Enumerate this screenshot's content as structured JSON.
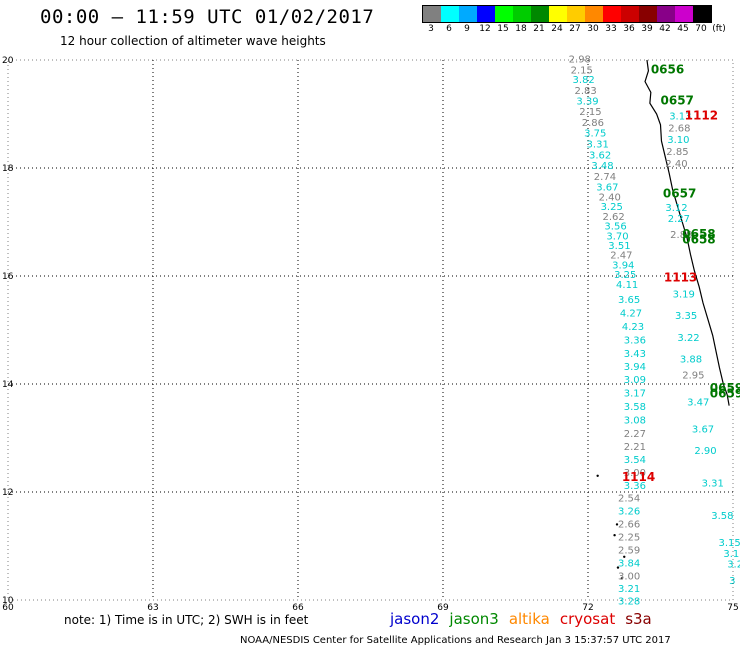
{
  "title": "00:00 – 11:59 UTC 01/02/2017",
  "subtitle": "12 hour collection of altimeter wave heights",
  "legend": {
    "labels": [
      "3",
      "6",
      "9",
      "12",
      "15",
      "18",
      "21",
      "24",
      "27",
      "30",
      "33",
      "36",
      "39",
      "42",
      "45",
      "70",
      "(ft)"
    ],
    "colors": [
      "#808080",
      "#00ffff",
      "#00aaff",
      "#0000ff",
      "#00ff00",
      "#00cc00",
      "#008800",
      "#ffff00",
      "#ffcc00",
      "#ff8800",
      "#ff0000",
      "#cc0000",
      "#880000",
      "#880088",
      "#cc00cc",
      "#000000"
    ]
  },
  "axes": {
    "x_ticks": [
      "60",
      "63",
      "66",
      "69",
      "72",
      "75"
    ],
    "y_ticks": [
      "20",
      "18",
      "16",
      "14",
      "12",
      "10"
    ]
  },
  "passes": [
    {
      "label": "0656",
      "color": "#007700",
      "lon": 73.3,
      "lat": 19.75
    },
    {
      "label": "0657",
      "color": "#007700",
      "lon": 73.5,
      "lat": 19.18
    },
    {
      "label": "0657",
      "color": "#007700",
      "lon": 73.55,
      "lat": 17.45
    },
    {
      "label": "0658",
      "color": "#007700",
      "lon": 73.95,
      "lat": 16.7
    },
    {
      "label": "0658",
      "color": "#007700",
      "lon": 73.95,
      "lat": 16.6
    },
    {
      "label": "0659",
      "color": "#007700",
      "lon": 74.52,
      "lat": 13.85
    },
    {
      "label": "0659",
      "color": "#007700",
      "lon": 74.52,
      "lat": 13.75
    },
    {
      "label": "1112",
      "color": "#dd0000",
      "lon": 74.0,
      "lat": 18.9
    },
    {
      "label": "1113",
      "color": "#dd0000",
      "lon": 73.57,
      "lat": 15.9
    },
    {
      "label": "1114",
      "color": "#dd0000",
      "lon": 72.7,
      "lat": 12.2
    }
  ],
  "track_a": [
    {
      "v": "2.98",
      "c": "#808080",
      "lon": 71.6,
      "lat": 19.95
    },
    {
      "v": "2.15",
      "c": "#808080",
      "lon": 71.64,
      "lat": 19.75
    },
    {
      "v": "3.82",
      "c": "#00cccc",
      "lon": 71.68,
      "lat": 19.57
    },
    {
      "v": "2.83",
      "c": "#808080",
      "lon": 71.72,
      "lat": 19.37
    },
    {
      "v": "3.39",
      "c": "#00cccc",
      "lon": 71.76,
      "lat": 19.18
    },
    {
      "v": "2.15",
      "c": "#808080",
      "lon": 71.82,
      "lat": 18.98
    },
    {
      "v": "2.86",
      "c": "#808080",
      "lon": 71.87,
      "lat": 18.78
    },
    {
      "v": "3.75",
      "c": "#00cccc",
      "lon": 71.92,
      "lat": 18.58
    },
    {
      "v": "3.31",
      "c": "#00cccc",
      "lon": 71.97,
      "lat": 18.38
    },
    {
      "v": "3.62",
      "c": "#00cccc",
      "lon": 72.02,
      "lat": 18.18
    },
    {
      "v": "3.48",
      "c": "#00cccc",
      "lon": 72.07,
      "lat": 17.98
    },
    {
      "v": "2.74",
      "c": "#808080",
      "lon": 72.12,
      "lat": 17.78
    },
    {
      "v": "3.67",
      "c": "#00cccc",
      "lon": 72.17,
      "lat": 17.58
    },
    {
      "v": "2.40",
      "c": "#808080",
      "lon": 72.22,
      "lat": 17.4
    },
    {
      "v": "3.25",
      "c": "#00cccc",
      "lon": 72.26,
      "lat": 17.22
    },
    {
      "v": "2.62",
      "c": "#808080",
      "lon": 72.3,
      "lat": 17.04
    },
    {
      "v": "3.56",
      "c": "#00cccc",
      "lon": 72.34,
      "lat": 16.86
    },
    {
      "v": "3.70",
      "c": "#00cccc",
      "lon": 72.38,
      "lat": 16.68
    },
    {
      "v": "3.51",
      "c": "#00cccc",
      "lon": 72.42,
      "lat": 16.5
    },
    {
      "v": "2.47",
      "c": "#808080",
      "lon": 72.46,
      "lat": 16.32
    },
    {
      "v": "3.94",
      "c": "#00cccc",
      "lon": 72.5,
      "lat": 16.14
    },
    {
      "v": "3.25",
      "c": "#00cccc",
      "lon": 72.54,
      "lat": 15.96
    },
    {
      "v": "4.11",
      "c": "#00cccc",
      "lon": 72.58,
      "lat": 15.78
    },
    {
      "v": "3.65",
      "c": "#00cccc",
      "lon": 72.62,
      "lat": 15.5
    },
    {
      "v": "4.27",
      "c": "#00cccc",
      "lon": 72.66,
      "lat": 15.25
    },
    {
      "v": "4.23",
      "c": "#00cccc",
      "lon": 72.7,
      "lat": 15.0
    },
    {
      "v": "3.36",
      "c": "#00cccc",
      "lon": 72.74,
      "lat": 14.75
    },
    {
      "v": "3.43",
      "c": "#00cccc",
      "lon": 72.74,
      "lat": 14.5
    },
    {
      "v": "3.94",
      "c": "#00cccc",
      "lon": 72.74,
      "lat": 14.26
    },
    {
      "v": "3.09",
      "c": "#00cccc",
      "lon": 72.74,
      "lat": 14.02
    },
    {
      "v": "3.17",
      "c": "#00cccc",
      "lon": 72.74,
      "lat": 13.77
    },
    {
      "v": "3.58",
      "c": "#00cccc",
      "lon": 72.74,
      "lat": 13.52
    },
    {
      "v": "3.08",
      "c": "#00cccc",
      "lon": 72.74,
      "lat": 13.27
    },
    {
      "v": "2.27",
      "c": "#808080",
      "lon": 72.74,
      "lat": 13.02
    },
    {
      "v": "2.21",
      "c": "#808080",
      "lon": 72.74,
      "lat": 12.78
    },
    {
      "v": "3.54",
      "c": "#00cccc",
      "lon": 72.74,
      "lat": 12.54
    },
    {
      "v": "3.00",
      "c": "#808080",
      "lon": 72.74,
      "lat": 12.3
    },
    {
      "v": "3.36",
      "c": "#00cccc",
      "lon": 72.74,
      "lat": 12.06
    },
    {
      "v": "2.54",
      "c": "#808080",
      "lon": 72.62,
      "lat": 11.82
    },
    {
      "v": "3.26",
      "c": "#00cccc",
      "lon": 72.62,
      "lat": 11.58
    },
    {
      "v": "2.66",
      "c": "#808080",
      "lon": 72.62,
      "lat": 11.34
    },
    {
      "v": "2.25",
      "c": "#808080",
      "lon": 72.62,
      "lat": 11.1
    },
    {
      "v": "2.59",
      "c": "#808080",
      "lon": 72.62,
      "lat": 10.86
    },
    {
      "v": "3.84",
      "c": "#00cccc",
      "lon": 72.62,
      "lat": 10.62
    },
    {
      "v": "3.00",
      "c": "#808080",
      "lon": 72.62,
      "lat": 10.38
    },
    {
      "v": "3.21",
      "c": "#00cccc",
      "lon": 72.62,
      "lat": 10.15
    },
    {
      "v": "3.28",
      "c": "#00cccc",
      "lon": 72.62,
      "lat": 9.92
    }
  ],
  "track_b": [
    {
      "v": "3.13",
      "c": "#00cccc",
      "lon": 73.68,
      "lat": 18.9
    },
    {
      "v": "2.68",
      "c": "#808080",
      "lon": 73.66,
      "lat": 18.68
    },
    {
      "v": "3.10",
      "c": "#00cccc",
      "lon": 73.64,
      "lat": 18.46
    },
    {
      "v": "2.85",
      "c": "#808080",
      "lon": 73.62,
      "lat": 18.24
    },
    {
      "v": "2.40",
      "c": "#808080",
      "lon": 73.6,
      "lat": 18.02
    },
    {
      "v": "3.12",
      "c": "#00cccc",
      "lon": 73.6,
      "lat": 17.2
    },
    {
      "v": "2.27",
      "c": "#00cccc",
      "lon": 73.65,
      "lat": 17.0
    },
    {
      "v": "2.88",
      "c": "#808080",
      "lon": 73.7,
      "lat": 16.7
    },
    {
      "v": "3.19",
      "c": "#00cccc",
      "lon": 73.75,
      "lat": 15.6
    },
    {
      "v": "3.35",
      "c": "#00cccc",
      "lon": 73.8,
      "lat": 15.2
    },
    {
      "v": "3.22",
      "c": "#00cccc",
      "lon": 73.85,
      "lat": 14.8
    },
    {
      "v": "3.88",
      "c": "#00cccc",
      "lon": 73.9,
      "lat": 14.4
    },
    {
      "v": "2.95",
      "c": "#808080",
      "lon": 73.95,
      "lat": 14.1
    },
    {
      "v": "3.47",
      "c": "#00cccc",
      "lon": 74.05,
      "lat": 13.6
    },
    {
      "v": "3.67",
      "c": "#00cccc",
      "lon": 74.15,
      "lat": 13.1
    },
    {
      "v": "2.90",
      "c": "#00cccc",
      "lon": 74.2,
      "lat": 12.7
    },
    {
      "v": "3.31",
      "c": "#00cccc",
      "lon": 74.35,
      "lat": 12.1
    },
    {
      "v": "3.58",
      "c": "#00cccc",
      "lon": 74.55,
      "lat": 11.5
    },
    {
      "v": "3.15",
      "c": "#00cccc",
      "lon": 74.7,
      "lat": 11.0
    },
    {
      "v": "3.1",
      "c": "#00cccc",
      "lon": 74.8,
      "lat": 10.8
    },
    {
      "v": "3.2",
      "c": "#00cccc",
      "lon": 74.88,
      "lat": 10.6
    },
    {
      "v": "3",
      "c": "#00cccc",
      "lon": 74.92,
      "lat": 10.3
    }
  ],
  "footer": {
    "note": "note:  1) Time is in UTC;  2) SWH is in feet",
    "satellites": [
      {
        "name": "jason2",
        "color": "#0000cc"
      },
      {
        "name": "jason3",
        "color": "#008800"
      },
      {
        "name": "altika",
        "color": "#ff8800"
      },
      {
        "name": "cryosat",
        "color": "#dd0000"
      },
      {
        "name": "s3a",
        "color": "#880000"
      }
    ],
    "credit": "NOAA/NESDIS Center for Satellite Applications and Research    Jan  3 15:37:57 UTC 2017"
  }
}
